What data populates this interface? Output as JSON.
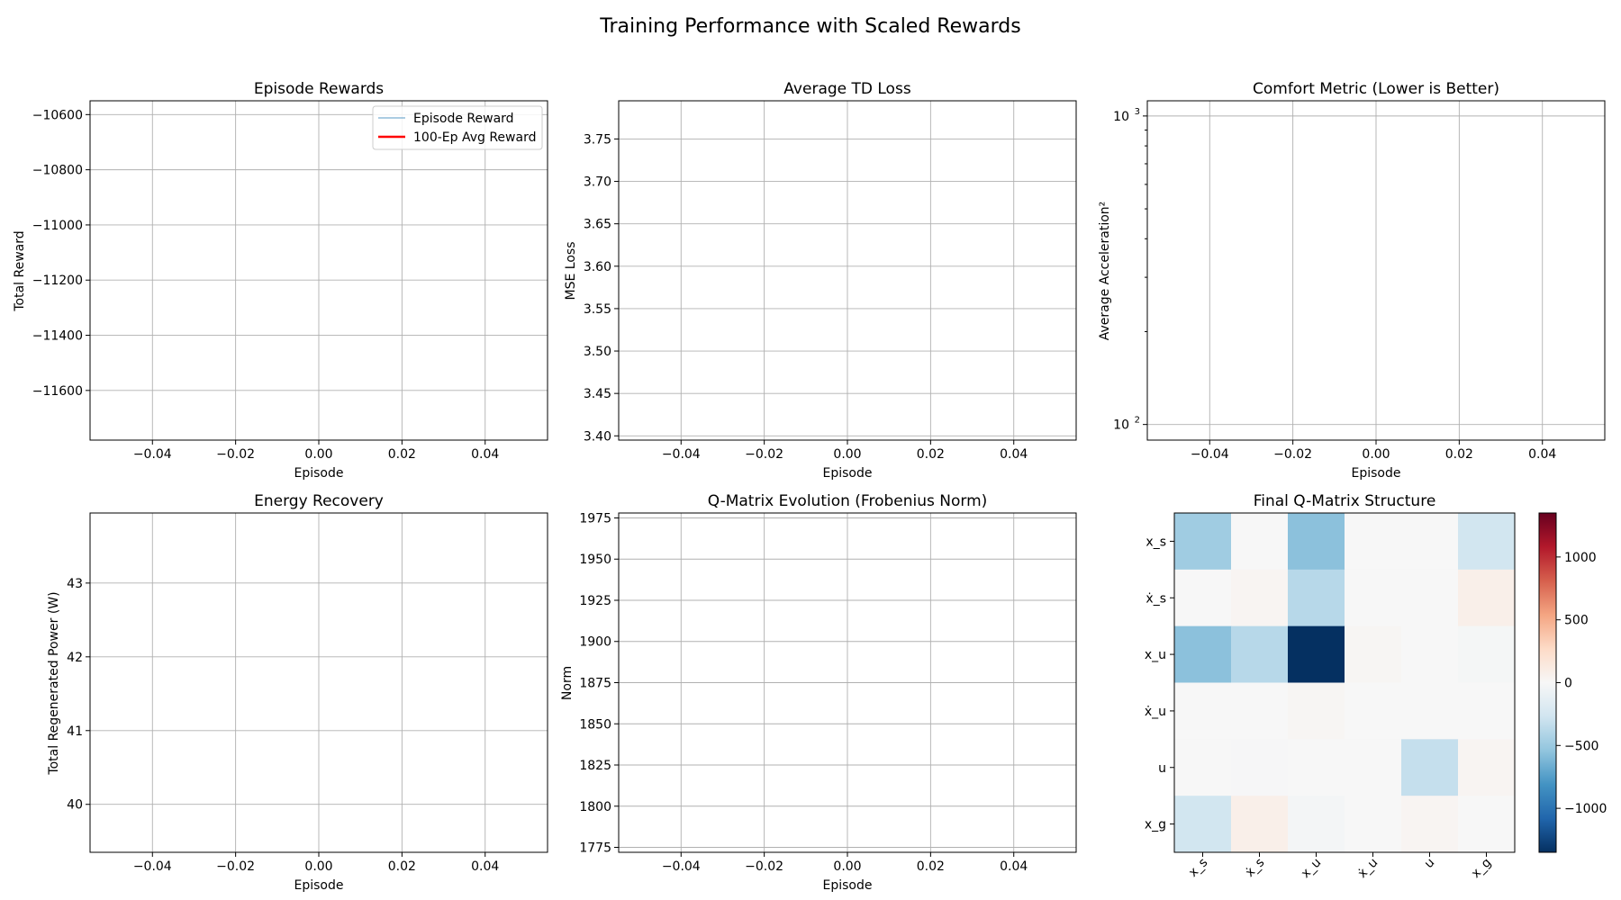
{
  "figure": {
    "title": "Training Performance with Scaled Rewards"
  },
  "chart_data": [
    {
      "type": "line",
      "title": "Episode Rewards",
      "xlabel": "Episode",
      "ylabel": "Total Reward",
      "xlim": [
        -0.055,
        0.055
      ],
      "ylim": [
        -11780,
        -10550
      ],
      "xticks": [
        -0.04,
        -0.02,
        0.0,
        0.02,
        0.04
      ],
      "xtick_labels": [
        "−0.04",
        "−0.02",
        "0.00",
        "0.02",
        "0.04"
      ],
      "yticks": [
        -10600,
        -10800,
        -11000,
        -11200,
        -11400,
        -11600
      ],
      "ytick_labels": [
        "−10600",
        "−10800",
        "−11000",
        "−11200",
        "−11400",
        "−11600"
      ],
      "grid": true,
      "legend": "upper right",
      "series": [
        {
          "name": "Episode Reward",
          "color": "#1f77b4",
          "x": [],
          "y": []
        },
        {
          "name": "100-Ep Avg Reward",
          "color": "#ff0000",
          "x": [],
          "y": []
        }
      ]
    },
    {
      "type": "line",
      "title": "Average TD Loss",
      "xlabel": "Episode",
      "ylabel": "MSE Loss",
      "xlim": [
        -0.055,
        0.055
      ],
      "ylim": [
        3.395,
        3.795
      ],
      "xticks": [
        -0.04,
        -0.02,
        0.0,
        0.02,
        0.04
      ],
      "xtick_labels": [
        "−0.04",
        "−0.02",
        "0.00",
        "0.02",
        "0.04"
      ],
      "yticks": [
        3.4,
        3.45,
        3.5,
        3.55,
        3.6,
        3.65,
        3.7,
        3.75
      ],
      "ytick_labels": [
        "3.40",
        "3.45",
        "3.50",
        "3.55",
        "3.60",
        "3.65",
        "3.70",
        "3.75"
      ],
      "grid": true,
      "series": []
    },
    {
      "type": "line",
      "title": "Comfort Metric (Lower is Better)",
      "xlabel": "Episode",
      "ylabel": "Average Acceleration²",
      "yscale": "log",
      "xlim": [
        -0.055,
        0.055
      ],
      "ylim": [
        89,
        1120
      ],
      "xticks": [
        -0.04,
        -0.02,
        0.0,
        0.02,
        0.04
      ],
      "xtick_labels": [
        "−0.04",
        "−0.02",
        "0.00",
        "0.02",
        "0.04"
      ],
      "yticks_major": [
        100,
        1000
      ],
      "ytick_labels": [
        {
          "base": "10",
          "exp": "2"
        },
        {
          "base": "10",
          "exp": "3"
        }
      ],
      "yticks_minor": [
        200,
        300,
        400,
        500,
        600,
        700,
        800,
        900
      ],
      "grid": true,
      "series": []
    },
    {
      "type": "line",
      "title": "Energy Recovery",
      "xlabel": "Episode",
      "ylabel": "Total Regenerated Power (W)",
      "xlim": [
        -0.055,
        0.055
      ],
      "ylim": [
        39.35,
        43.95
      ],
      "xticks": [
        -0.04,
        -0.02,
        0.0,
        0.02,
        0.04
      ],
      "xtick_labels": [
        "−0.04",
        "−0.02",
        "0.00",
        "0.02",
        "0.04"
      ],
      "yticks": [
        40,
        41,
        42,
        43
      ],
      "ytick_labels": [
        "40",
        "41",
        "42",
        "43"
      ],
      "grid": true,
      "series": []
    },
    {
      "type": "line",
      "title": "Q-Matrix Evolution (Frobenius Norm)",
      "xlabel": "Episode",
      "ylabel": "Norm",
      "xlim": [
        -0.055,
        0.055
      ],
      "ylim": [
        1772,
        1978
      ],
      "xticks": [
        -0.04,
        -0.02,
        0.0,
        0.02,
        0.04
      ],
      "xtick_labels": [
        "−0.04",
        "−0.02",
        "0.00",
        "0.02",
        "0.04"
      ],
      "yticks": [
        1775,
        1800,
        1825,
        1850,
        1875,
        1900,
        1925,
        1950,
        1975
      ],
      "ytick_labels": [
        "1775",
        "1800",
        "1825",
        "1850",
        "1875",
        "1900",
        "1925",
        "1950",
        "1975"
      ],
      "grid": true,
      "series": []
    },
    {
      "type": "heatmap",
      "title": "Final Q-Matrix Structure",
      "row_labels": [
        "x_s",
        "ẋ_s",
        "x_u",
        "ẋ_u",
        "u",
        "x_g"
      ],
      "col_labels": [
        "x_s",
        "ẋ_s",
        "x_u",
        "ẋ_u",
        "u",
        "x_g"
      ],
      "values": [
        [
          -480,
          0,
          -560,
          0,
          0,
          -260
        ],
        [
          0,
          30,
          -380,
          0,
          0,
          80
        ],
        [
          -560,
          -380,
          -1350,
          20,
          0,
          -20
        ],
        [
          0,
          0,
          20,
          0,
          0,
          0
        ],
        [
          0,
          -10,
          0,
          0,
          -320,
          30
        ],
        [
          -260,
          80,
          -30,
          0,
          30,
          0
        ]
      ],
      "vmin": -1350,
      "vmax": 1350,
      "colormap": "RdBu_r",
      "colorbar_ticks": [
        1000,
        500,
        0,
        -500,
        -1000
      ],
      "colorbar_tick_labels": [
        "1000",
        "500",
        "0",
        "−500",
        "−1000"
      ]
    }
  ]
}
